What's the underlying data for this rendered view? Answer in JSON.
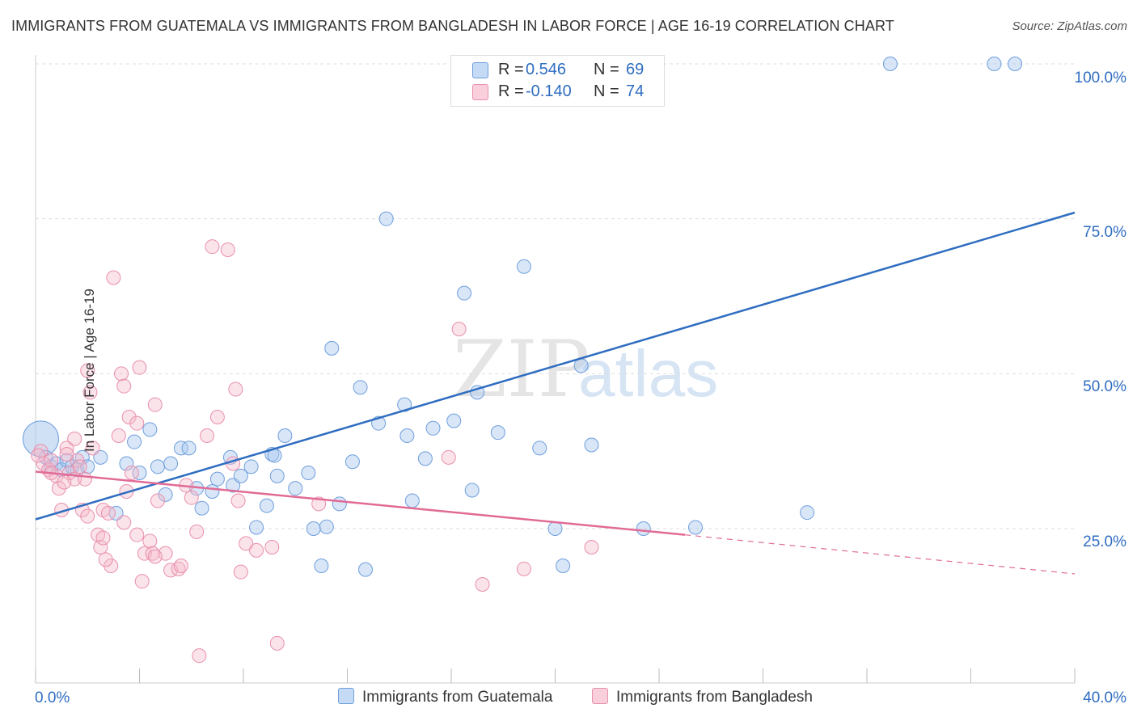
{
  "title": "IMMIGRANTS FROM GUATEMALA VS IMMIGRANTS FROM BANGLADESH IN LABOR FORCE | AGE 16-19 CORRELATION CHART",
  "source": "Source: ZipAtlas.com",
  "watermark": "ZIPatlas",
  "colors": {
    "blue_fill": "#a9c8ef",
    "blue_stroke": "#6f9fdc",
    "blue_line": "#2f6dc1",
    "pink_fill": "#f6b8cb",
    "pink_stroke": "#e890ad",
    "pink_line": "#e16b96",
    "accent_text": "#2f6dc1",
    "grid": "#dddddd"
  },
  "legend": {
    "rows": [
      {
        "r_label": "R =",
        "r_value": "0.546",
        "n_label": "N =",
        "n_value": "69",
        "color": "#a9c8ef"
      },
      {
        "r_label": "R =",
        "r_value": "-0.140",
        "n_label": "N =",
        "n_value": "74",
        "color": "#f6b8cb"
      }
    ]
  },
  "chart_data": {
    "type": "scatter",
    "title": "IMMIGRANTS FROM GUATEMALA VS IMMIGRANTS FROM BANGLADESH IN LABOR FORCE | AGE 16-19 CORRELATION CHART",
    "xlabel": "",
    "ylabel": "In Labor Force | Age 16-19",
    "xlim": [
      0,
      40
    ],
    "ylim": [
      0,
      103
    ],
    "x_tick_labels": [
      "0.0%",
      "40.0%"
    ],
    "y_ticks": [
      25,
      50,
      75,
      100
    ],
    "y_tick_labels": [
      "25.0%",
      "50.0%",
      "75.0%",
      "100.0%"
    ],
    "grid": true,
    "legend_position": "top-center",
    "series": [
      {
        "name": "Immigrants from Guatemala",
        "color": "#a9c8ef",
        "r": "0.546",
        "n": "69",
        "trend": {
          "x": [
            0,
            40
          ],
          "y": [
            26.5,
            76
          ]
        },
        "points": [
          [
            0.2,
            39.5
          ],
          [
            0.4,
            36.5
          ],
          [
            0.6,
            35
          ],
          [
            0.8,
            35.5
          ],
          [
            1.0,
            34.5
          ],
          [
            1.2,
            36
          ],
          [
            1.4,
            35
          ],
          [
            1.6,
            34.5
          ],
          [
            1.8,
            36.5
          ],
          [
            2.0,
            35
          ],
          [
            2.5,
            36.5
          ],
          [
            3.1,
            27.5
          ],
          [
            3.5,
            35.5
          ],
          [
            3.8,
            39
          ],
          [
            4.0,
            34
          ],
          [
            4.4,
            41
          ],
          [
            4.7,
            35
          ],
          [
            5.0,
            30.5
          ],
          [
            5.2,
            35.5
          ],
          [
            5.6,
            38
          ],
          [
            5.9,
            38
          ],
          [
            6.2,
            31.5
          ],
          [
            6.4,
            28.3
          ],
          [
            6.8,
            31
          ],
          [
            7.0,
            33
          ],
          [
            7.5,
            36.5
          ],
          [
            7.6,
            32
          ],
          [
            7.9,
            33.5
          ],
          [
            8.3,
            35
          ],
          [
            8.5,
            25.2
          ],
          [
            8.9,
            28.7
          ],
          [
            9.1,
            37
          ],
          [
            9.3,
            33.5
          ],
          [
            9.6,
            40
          ],
          [
            10.0,
            31.5
          ],
          [
            10.5,
            34
          ],
          [
            10.7,
            25
          ],
          [
            11.2,
            25.3
          ],
          [
            11.0,
            19
          ],
          [
            11.4,
            54.1
          ],
          [
            12.2,
            35.8
          ],
          [
            12.7,
            18.4
          ],
          [
            12.5,
            47.8
          ],
          [
            13.2,
            42
          ],
          [
            13.5,
            75
          ],
          [
            14.2,
            45
          ],
          [
            14.5,
            29.5
          ],
          [
            14.3,
            40
          ],
          [
            15.0,
            36.3
          ],
          [
            15.3,
            41.2
          ],
          [
            16.1,
            42.4
          ],
          [
            16.8,
            31.2
          ],
          [
            16.5,
            63
          ],
          [
            17.8,
            40.5
          ],
          [
            18.8,
            67.3
          ],
          [
            19.4,
            38
          ],
          [
            20.0,
            25
          ],
          [
            20.3,
            19
          ],
          [
            21.0,
            51.3
          ],
          [
            21.4,
            38.5
          ],
          [
            23.4,
            25
          ],
          [
            25.4,
            25.2
          ],
          [
            29.7,
            27.6
          ],
          [
            32.9,
            100
          ],
          [
            36.9,
            100
          ],
          [
            37.7,
            100
          ],
          [
            17.0,
            47
          ],
          [
            11.7,
            29
          ],
          [
            9.2,
            36.8
          ]
        ]
      },
      {
        "name": "Immigrants from Bangladesh",
        "color": "#f6b8cb",
        "r": "-0.140",
        "n": "74",
        "trend_solid": {
          "x": [
            0,
            25
          ],
          "y": [
            34.2,
            24
          ]
        },
        "trend_dashed": {
          "x": [
            25,
            40
          ],
          "y": [
            24,
            17.7
          ]
        },
        "points": [
          [
            0.2,
            37.5
          ],
          [
            0.3,
            35.5
          ],
          [
            0.5,
            34.5
          ],
          [
            0.6,
            36
          ],
          [
            0.8,
            33.5
          ],
          [
            1.0,
            28
          ],
          [
            0.9,
            31.5
          ],
          [
            1.2,
            38
          ],
          [
            1.3,
            34
          ],
          [
            1.5,
            33
          ],
          [
            1.5,
            39.5
          ],
          [
            1.6,
            36
          ],
          [
            1.7,
            35
          ],
          [
            1.8,
            28
          ],
          [
            1.9,
            33
          ],
          [
            2.0,
            27
          ],
          [
            2.0,
            50.5
          ],
          [
            2.1,
            47
          ],
          [
            2.2,
            38
          ],
          [
            2.4,
            24
          ],
          [
            2.5,
            22
          ],
          [
            2.6,
            23.5
          ],
          [
            2.6,
            28
          ],
          [
            2.8,
            27.5
          ],
          [
            2.9,
            19
          ],
          [
            3.0,
            65.5
          ],
          [
            3.2,
            40
          ],
          [
            3.3,
            50
          ],
          [
            3.4,
            48
          ],
          [
            3.4,
            26
          ],
          [
            3.5,
            31
          ],
          [
            3.6,
            43
          ],
          [
            3.7,
            34
          ],
          [
            3.9,
            42
          ],
          [
            4.0,
            51
          ],
          [
            4.1,
            16.5
          ],
          [
            4.2,
            21
          ],
          [
            4.4,
            23
          ],
          [
            4.5,
            21
          ],
          [
            4.6,
            45
          ],
          [
            4.7,
            29.5
          ],
          [
            5.0,
            21
          ],
          [
            5.2,
            18.3
          ],
          [
            5.5,
            18.5
          ],
          [
            5.6,
            19
          ],
          [
            5.8,
            32
          ],
          [
            6.0,
            30
          ],
          [
            6.2,
            24.5
          ],
          [
            6.3,
            4.5
          ],
          [
            6.6,
            40
          ],
          [
            6.8,
            70.5
          ],
          [
            7.0,
            43
          ],
          [
            7.4,
            70
          ],
          [
            7.6,
            35.5
          ],
          [
            7.7,
            47.5
          ],
          [
            7.8,
            29.5
          ],
          [
            7.9,
            18
          ],
          [
            8.1,
            22.6
          ],
          [
            8.5,
            21.5
          ],
          [
            9.1,
            22
          ],
          [
            9.3,
            6.5
          ],
          [
            10.9,
            29
          ],
          [
            15.9,
            36.5
          ],
          [
            16.3,
            57.2
          ],
          [
            17.2,
            16
          ],
          [
            18.8,
            18.5
          ],
          [
            21.4,
            22
          ],
          [
            0.6,
            34
          ],
          [
            1.1,
            32.5
          ],
          [
            2.7,
            20
          ],
          [
            3.9,
            24
          ],
          [
            4.6,
            20.5
          ],
          [
            0.1,
            36.8
          ],
          [
            1.2,
            37
          ]
        ]
      }
    ]
  }
}
